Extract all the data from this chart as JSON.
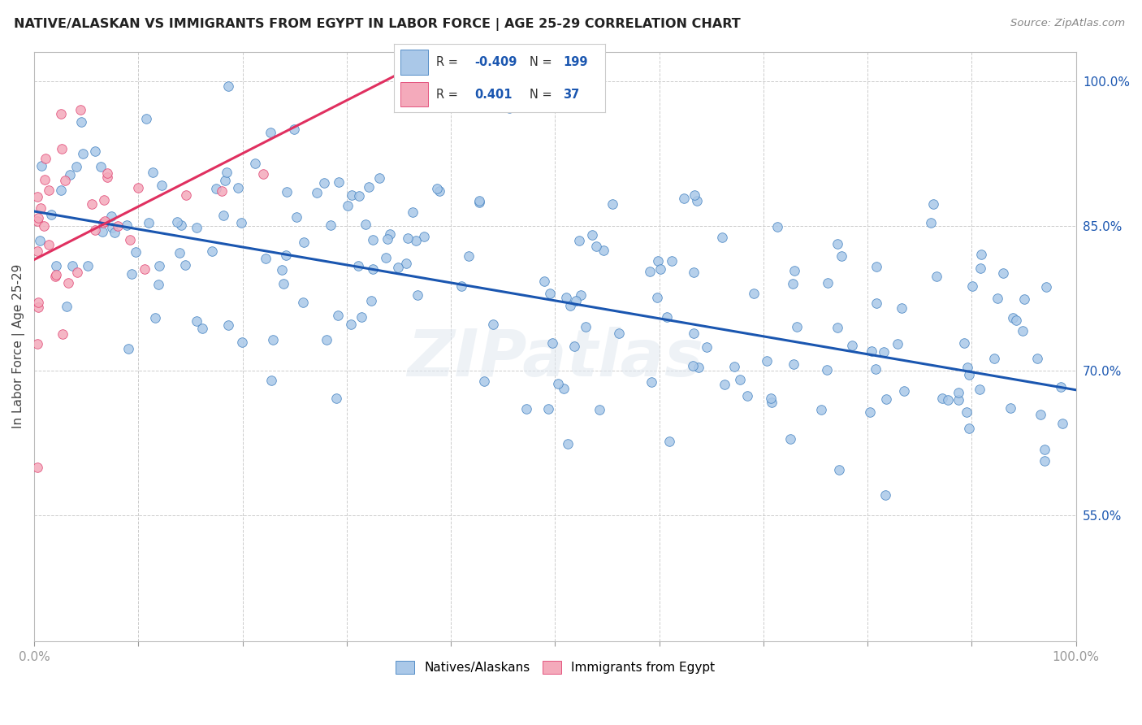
{
  "title": "NATIVE/ALASKAN VS IMMIGRANTS FROM EGYPT IN LABOR FORCE | AGE 25-29 CORRELATION CHART",
  "source": "Source: ZipAtlas.com",
  "ylabel": "In Labor Force | Age 25-29",
  "xlim": [
    0.0,
    1.0
  ],
  "ylim": [
    0.42,
    1.03
  ],
  "ytick_vals": [
    0.55,
    0.7,
    0.85,
    1.0
  ],
  "ytick_labels": [
    "55.0%",
    "70.0%",
    "85.0%",
    "100.0%"
  ],
  "legend_blue_R": "-0.409",
  "legend_blue_N": "199",
  "legend_pink_R": "0.401",
  "legend_pink_N": "37",
  "blue_fill": "#aac8e8",
  "pink_fill": "#f4aabb",
  "blue_edge": "#4080c0",
  "pink_edge": "#e04070",
  "trendline_blue": "#1a56b0",
  "trendline_pink": "#e03060",
  "background": "#ffffff",
  "grid_color": "#cccccc",
  "watermark": "ZIPatlas",
  "blue_intercept": 0.865,
  "blue_slope": -0.185,
  "blue_noise_std": 0.07,
  "blue_seed": 42,
  "pink_seed": 99,
  "pink_intercept": 0.815,
  "pink_slope": 0.55,
  "pink_noise_std": 0.055
}
